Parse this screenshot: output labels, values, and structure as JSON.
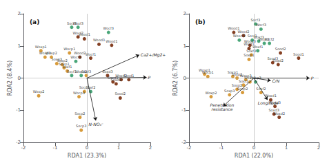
{
  "chart_data": [
    {
      "type": "scatter",
      "title": "(a)",
      "xlabel": "RDA1 (23.3%)",
      "ylabel": "RDA2 (8.4%)",
      "xlim": [
        -2,
        2
      ],
      "ylim": [
        -2,
        2
      ],
      "xticks": [
        -2,
        -1,
        0,
        1,
        2
      ],
      "yticks": [
        -2,
        -1,
        0,
        1,
        2
      ],
      "grid": false,
      "points": [
        {
          "label": "Socf3",
          "x": -0.48,
          "y": 1.58,
          "color": "#3a9e6e"
        },
        {
          "label": "Woxf3",
          "x": -0.28,
          "y": 1.58,
          "color": "#3a9e6e"
        },
        {
          "label": "Wocf3",
          "x": 0.68,
          "y": 1.42,
          "color": "#3a9e6e"
        },
        {
          "label": "Wocf2",
          "x": -0.28,
          "y": 1.28,
          "color": "#7B3010"
        },
        {
          "label": "Wood1",
          "x": -0.08,
          "y": 1.22,
          "color": "#7B3010"
        },
        {
          "label": "Wood3",
          "x": 0.38,
          "y": 1.05,
          "color": "#7B3010"
        },
        {
          "label": "Wood1",
          "x": 0.78,
          "y": 1.02,
          "color": "#7B3010"
        },
        {
          "label": "Woxp1",
          "x": -1.45,
          "y": 0.85,
          "color": "#D4922A"
        },
        {
          "label": "Wocp1",
          "x": -0.55,
          "y": 0.78,
          "color": "#D4922A"
        },
        {
          "label": "Woxp3",
          "x": -1.32,
          "y": 0.65,
          "color": "#D4922A"
        },
        {
          "label": "Woxp2",
          "x": -1.12,
          "y": 0.65,
          "color": "#D4922A"
        },
        {
          "label": "Wood2",
          "x": -0.22,
          "y": 0.65,
          "color": "#7B3010"
        },
        {
          "label": "Wocf1",
          "x": 0.12,
          "y": 0.62,
          "color": "#7B3010"
        },
        {
          "label": "Wocf1",
          "x": -0.35,
          "y": 0.52,
          "color": "#3a9e6e"
        },
        {
          "label": "Soxp3",
          "x": -0.95,
          "y": 0.45,
          "color": "#D4922A"
        },
        {
          "label": "Soxp2",
          "x": -0.78,
          "y": 0.42,
          "color": "#D4922A"
        },
        {
          "label": "Soxp1",
          "x": -0.72,
          "y": 0.32,
          "color": "#D4922A"
        },
        {
          "label": "Soxf1",
          "x": -0.62,
          "y": 0.22,
          "color": "#D4922A"
        },
        {
          "label": "Socf1",
          "x": -0.48,
          "y": 0.08,
          "color": "#3a9e6e"
        },
        {
          "label": "Woxd2",
          "x": -0.18,
          "y": 0.08,
          "color": "#3a9e6e"
        },
        {
          "label": "Soxf3",
          "x": -0.02,
          "y": 0.08,
          "color": "#D4922A"
        },
        {
          "label": "Soxd3",
          "x": 0.65,
          "y": 0.08,
          "color": "#7B3010"
        },
        {
          "label": "Soxd1",
          "x": 0.82,
          "y": -0.12,
          "color": "#7B3010"
        },
        {
          "label": "Woxd2",
          "x": 1.08,
          "y": -0.05,
          "color": "#7B3010"
        },
        {
          "label": "Sood1",
          "x": 1.32,
          "y": -0.05,
          "color": "#7B3010"
        },
        {
          "label": "Soxd2",
          "x": 0.92,
          "y": -0.18,
          "color": "#7B3010"
        },
        {
          "label": "Soxf2",
          "x": 0.12,
          "y": -0.42,
          "color": "#3a9e6e"
        },
        {
          "label": "Socp1",
          "x": -0.08,
          "y": -0.42,
          "color": "#D4922A"
        },
        {
          "label": "Woxp2",
          "x": -1.52,
          "y": -0.55,
          "color": "#D4922A"
        },
        {
          "label": "Wocp3",
          "x": -0.25,
          "y": -0.58,
          "color": "#D4922A"
        },
        {
          "label": "Sood2",
          "x": 1.05,
          "y": -0.62,
          "color": "#7B3010"
        },
        {
          "label": "Socp2",
          "x": -0.22,
          "y": -1.22,
          "color": "#D4922A"
        },
        {
          "label": "Socp3",
          "x": -0.18,
          "y": -1.62,
          "color": "#D4922A"
        }
      ],
      "arrows": [
        {
          "label": "Ca2+/Mg2+",
          "x": 1.65,
          "y": 0.72,
          "color": "#111111"
        },
        {
          "label": "P",
          "x": 1.88,
          "y": 0.02,
          "color": "#111111"
        },
        {
          "label": "N-NO₃⁻",
          "x": 0.28,
          "y": -1.32,
          "color": "#111111"
        }
      ]
    },
    {
      "type": "scatter",
      "title": "(b)",
      "xlabel": "RDA1 (22.0%)",
      "ylabel": "RDA2 (6.7%)",
      "xlim": [
        -2,
        2
      ],
      "ylim": [
        -2,
        2
      ],
      "xticks": [
        -2,
        -1,
        0,
        1,
        2
      ],
      "yticks": [
        -2,
        -1,
        0,
        1,
        2
      ],
      "grid": false,
      "points": [
        {
          "label": "Socf3",
          "x": 0.05,
          "y": 1.68,
          "color": "#3a9e6e"
        },
        {
          "label": "Wocf3",
          "x": 0.22,
          "y": 1.52,
          "color": "#3a9e6e"
        },
        {
          "label": "Wood1",
          "x": -0.62,
          "y": 1.42,
          "color": "#7B3010"
        },
        {
          "label": "Wood2",
          "x": -0.32,
          "y": 1.32,
          "color": "#7B3010"
        },
        {
          "label": "Woscf2",
          "x": -0.45,
          "y": 1.18,
          "color": "#3a9e6e"
        },
        {
          "label": "Socf1",
          "x": -0.05,
          "y": 1.18,
          "color": "#3a9e6e"
        },
        {
          "label": "Woxf3",
          "x": 0.15,
          "y": 1.15,
          "color": "#3a9e6e"
        },
        {
          "label": "Woxf2",
          "x": 0.32,
          "y": 1.08,
          "color": "#3a9e6e"
        },
        {
          "label": "Socf2",
          "x": 0.48,
          "y": 1.08,
          "color": "#3a9e6e"
        },
        {
          "label": "Wood3",
          "x": -0.12,
          "y": 1.02,
          "color": "#7B3010"
        },
        {
          "label": "Wocf1",
          "x": -0.15,
          "y": 0.92,
          "color": "#7B3010"
        },
        {
          "label": "Woxf1",
          "x": 0.12,
          "y": 0.85,
          "color": "#3a9e6e"
        },
        {
          "label": "Sood2",
          "x": 0.82,
          "y": 0.78,
          "color": "#7B3010"
        },
        {
          "label": "Soxf3",
          "x": -0.08,
          "y": 0.72,
          "color": "#D4922A"
        },
        {
          "label": "Sood1",
          "x": 1.38,
          "y": 0.62,
          "color": "#7B3010"
        },
        {
          "label": "Soxp1",
          "x": -0.15,
          "y": 0.58,
          "color": "#D4922A"
        },
        {
          "label": "Sood3",
          "x": 0.58,
          "y": 0.48,
          "color": "#7B3010"
        },
        {
          "label": "Soxd2",
          "x": 0.75,
          "y": 0.42,
          "color": "#7B3010"
        },
        {
          "label": "Woxp1",
          "x": -1.52,
          "y": 0.12,
          "color": "#D4922A"
        },
        {
          "label": "Wocp1",
          "x": -1.42,
          "y": 0.05,
          "color": "#D4922A"
        },
        {
          "label": "Soxp1",
          "x": -0.65,
          "y": 0.05,
          "color": "#D4922A"
        },
        {
          "label": "Soxp2",
          "x": -0.52,
          "y": 0.0,
          "color": "#D4922A"
        },
        {
          "label": "Woxp3",
          "x": -0.25,
          "y": -0.05,
          "color": "#D4922A"
        },
        {
          "label": "Woxp3",
          "x": -0.12,
          "y": -0.12,
          "color": "#D4922A"
        },
        {
          "label": "Woxp3",
          "x": 0.05,
          "y": -0.12,
          "color": "#3a9e6e"
        },
        {
          "label": "Soxf1",
          "x": -0.32,
          "y": -0.22,
          "color": "#D4922A"
        },
        {
          "label": "Soxp2",
          "x": -0.52,
          "y": -0.35,
          "color": "#D4922A"
        },
        {
          "label": "Soop2",
          "x": -0.35,
          "y": -0.45,
          "color": "#D4922A"
        },
        {
          "label": "Soxf2",
          "x": 0.22,
          "y": -0.45,
          "color": "#D4922A"
        },
        {
          "label": "Soxp3",
          "x": -0.75,
          "y": -0.52,
          "color": "#D4922A"
        },
        {
          "label": "Woxp2",
          "x": -1.32,
          "y": -0.58,
          "color": "#D4922A"
        },
        {
          "label": "Woxd1",
          "x": 0.52,
          "y": -0.68,
          "color": "#7B3010"
        },
        {
          "label": "Woxd3",
          "x": 0.65,
          "y": -0.88,
          "color": "#7B3010"
        },
        {
          "label": "Soxd3",
          "x": 0.62,
          "y": -1.12,
          "color": "#7B3010"
        },
        {
          "label": "Woxd2",
          "x": 0.78,
          "y": -1.22,
          "color": "#7B3010"
        }
      ],
      "arrows": [
        {
          "label": "C/N",
          "x": 0.52,
          "y": -0.08,
          "color": "#111111"
        },
        {
          "label": "P",
          "x": 1.72,
          "y": 0.0,
          "color": "#111111"
        },
        {
          "label": "Longitude",
          "x": 0.42,
          "y": -0.68,
          "color": "#111111"
        },
        {
          "label": "Penetration\nresistance",
          "x": -0.95,
          "y": -0.88,
          "color": "#111111"
        }
      ]
    }
  ]
}
